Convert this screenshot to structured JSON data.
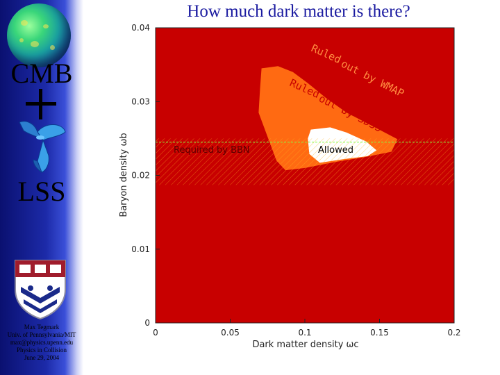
{
  "slide": {
    "title": "How much dark matter is there?",
    "cmb_label": "CMB",
    "lss_label": "LSS",
    "credits": [
      "Max Tegmark",
      "Univ. of Pennsylvania/MIT",
      "max@physics.upenn.edu",
      "Physics in Collision",
      "June 29, 2004"
    ]
  },
  "chart_data": {
    "type": "contour",
    "xlabel": "Dark matter density ωc",
    "ylabel": "Baryon density ωb",
    "xlim": [
      0,
      0.2
    ],
    "ylim": [
      0,
      0.04
    ],
    "x_ticks": [
      "0",
      "0.05",
      "0.1",
      "0.15",
      "0.2"
    ],
    "y_ticks": [
      "0",
      "0.01",
      "0.02",
      "0.03",
      "0.04"
    ],
    "bbn_band": {
      "label": "Required by BBN",
      "y_min": 0.0187,
      "y_max": 0.025
    },
    "bbn_center_line": 0.0245,
    "regions": [
      {
        "name": "ruled-out-wmap",
        "label": "Ruled out by WMAP",
        "color": "#c80000",
        "polygon": []
      },
      {
        "name": "ruled-out-sdss",
        "label": "Ruled out by SDSS",
        "color": "#ff6a12",
        "polygon": [
          [
            0.071,
            0.0345
          ],
          [
            0.082,
            0.0348
          ],
          [
            0.092,
            0.034
          ],
          [
            0.102,
            0.0325
          ],
          [
            0.114,
            0.0305
          ],
          [
            0.128,
            0.0285
          ],
          [
            0.146,
            0.0266
          ],
          [
            0.162,
            0.0249
          ],
          [
            0.158,
            0.0232
          ],
          [
            0.141,
            0.0225
          ],
          [
            0.12,
            0.0218
          ],
          [
            0.1,
            0.021
          ],
          [
            0.087,
            0.0207
          ],
          [
            0.081,
            0.022
          ],
          [
            0.076,
            0.0247
          ],
          [
            0.069,
            0.0285
          ],
          [
            0.07,
            0.0318
          ]
        ]
      },
      {
        "name": "allowed",
        "label": "Allowed",
        "color": "#ffffff",
        "polygon": [
          [
            0.104,
            0.0262
          ],
          [
            0.117,
            0.0265
          ],
          [
            0.128,
            0.0258
          ],
          [
            0.141,
            0.0246
          ],
          [
            0.148,
            0.0234
          ],
          [
            0.142,
            0.0226
          ],
          [
            0.126,
            0.0222
          ],
          [
            0.11,
            0.0217
          ],
          [
            0.103,
            0.0229
          ],
          [
            0.102,
            0.025
          ]
        ]
      }
    ],
    "labels": {
      "wmap_line1": "Ruled",
      "wmap_line2": "out by WMAP",
      "sdss_line1": "Ruled",
      "sdss_line2": "out by SDSS",
      "allowed": "Allowed",
      "bbn": "Required by BBN"
    },
    "colors": {
      "wmap": "#c80000",
      "sdss": "#ff6a12",
      "allowed": "#ffffff",
      "bbn_hatch": "#ffb020",
      "bbn_line": "#80ff40"
    }
  }
}
